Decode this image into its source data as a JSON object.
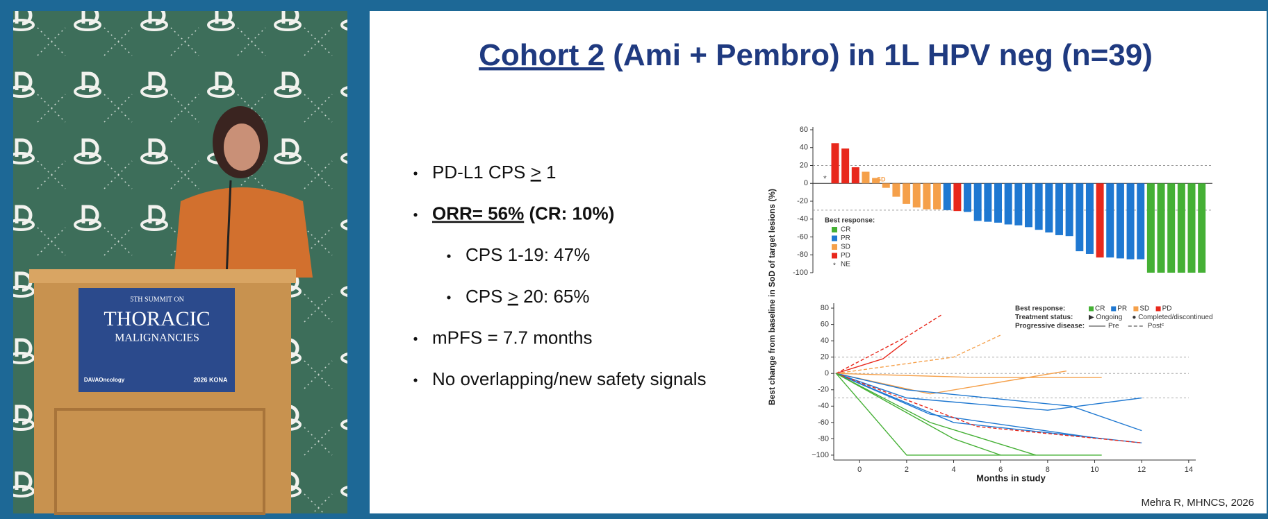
{
  "video": {
    "sign": {
      "line1": "5TH SUMMIT ON",
      "line2": "THORACIC",
      "line3": "MALIGNANCIES",
      "brand": "DAVAOncology",
      "event": "2026 KONA"
    }
  },
  "slide": {
    "title": {
      "underlined": "Cohort 2",
      "rest": " (Ami + Pembro) in 1L HPV neg (n=39)"
    },
    "bullets": [
      {
        "level": 1,
        "bold": false,
        "segments": [
          {
            "text": "PD-L1 CPS "
          },
          {
            "text": ">",
            "underline": true
          },
          {
            "text": " 1"
          }
        ]
      },
      {
        "level": 1,
        "bold": true,
        "segments": [
          {
            "text": "ORR= 56%",
            "underline": true
          },
          {
            "text": " (CR: 10%)"
          }
        ]
      },
      {
        "level": 2,
        "bold": false,
        "segments": [
          {
            "text": "CPS 1-19: 47%"
          }
        ]
      },
      {
        "level": 2,
        "bold": false,
        "segments": [
          {
            "text": "CPS "
          },
          {
            "text": ">",
            "underline": true
          },
          {
            "text": " 20: 65%"
          }
        ]
      },
      {
        "level": 1,
        "bold": false,
        "segments": [
          {
            "text": "mPFS = 7.7 months"
          }
        ]
      },
      {
        "level": 1,
        "bold": false,
        "segments": [
          {
            "text": "No overlapping/new safety signals"
          }
        ]
      }
    ],
    "footnote": "Mehra R, MHNCS, 2026"
  },
  "chart_data": [
    {
      "type": "bar",
      "y_label": "Best change from baseline in SoD of target lesions (%)",
      "ylim": [
        -100,
        60
      ],
      "yticks": [
        60,
        40,
        20,
        0,
        -20,
        -40,
        -60,
        -80,
        -100
      ],
      "ref_lines": [
        20,
        -30
      ],
      "sd_annotation": "SD",
      "ne_marker": "*",
      "values": [
        null,
        45,
        39,
        18,
        13,
        6,
        -5,
        -15,
        -23,
        -27,
        -29,
        -29,
        -30,
        -31,
        -32,
        -42,
        -43,
        -44,
        -46,
        -47,
        -49,
        -52,
        -55,
        -58,
        -59,
        -76,
        -79,
        -83,
        -83,
        -84,
        -85,
        -85,
        -100,
        -100,
        -100,
        -100,
        -100,
        -100
      ],
      "colors": [
        "#888",
        "#e8281c",
        "#e8281c",
        "#e8281c",
        "#f5a04a",
        "#f5a04a",
        "#f5a04a",
        "#f5a04a",
        "#f5a04a",
        "#f5a04a",
        "#f5a04a",
        "#f5a04a",
        "#1f78d1",
        "#e8281c",
        "#1f78d1",
        "#1f78d1",
        "#1f78d1",
        "#1f78d1",
        "#1f78d1",
        "#1f78d1",
        "#1f78d1",
        "#1f78d1",
        "#1f78d1",
        "#1f78d1",
        "#1f78d1",
        "#1f78d1",
        "#1f78d1",
        "#e8281c",
        "#1f78d1",
        "#1f78d1",
        "#1f78d1",
        "#1f78d1",
        "#45b035",
        "#45b035",
        "#45b035",
        "#45b035",
        "#45b035",
        "#45b035"
      ],
      "legend_title": "Best response:",
      "legend": [
        {
          "name": "CR",
          "color": "#45b035"
        },
        {
          "name": "PR",
          "color": "#1f78d1"
        },
        {
          "name": "SD",
          "color": "#f5a04a"
        },
        {
          "name": "PD",
          "color": "#e8281c"
        },
        {
          "name": "NE",
          "marker": "*"
        }
      ]
    },
    {
      "type": "line",
      "x_label": "Months in study",
      "xlim": [
        -1.1,
        14.3
      ],
      "xticks": [
        0,
        2,
        4,
        6,
        8,
        10,
        12,
        14
      ],
      "ylim": [
        -106,
        86
      ],
      "yticks": [
        80,
        60,
        40,
        20,
        0,
        -20,
        -40,
        -60,
        -80,
        {
          "value": -100,
          "label": "−100"
        }
      ],
      "ref_lines": [
        20,
        0,
        -30
      ],
      "legend_rows": [
        {
          "title": "Best response:",
          "items": [
            "CR",
            "PR",
            "SD",
            "PD"
          ]
        },
        {
          "title": "Treatment status:",
          "items": [
            "▶ Ongoing",
            "● Completed/discontinued"
          ]
        },
        {
          "title": "Progressive disease:",
          "items": [
            "Pre",
            "Postᶜ"
          ]
        }
      ],
      "legend_colors": [
        "#45b035",
        "#1f78d1",
        "#f5a04a",
        "#e8281c"
      ],
      "series": [
        {
          "color": "#e8281c",
          "dashed": true,
          "x": [
            -1,
            2,
            3.5
          ],
          "values": [
            0,
            45,
            72
          ]
        },
        {
          "color": "#e8281c",
          "dashed": false,
          "x": [
            -1,
            1,
            2
          ],
          "values": [
            0,
            18,
            40
          ]
        },
        {
          "color": "#f5a04a",
          "dashed": true,
          "x": [
            -1,
            4,
            6
          ],
          "values": [
            0,
            20,
            47
          ]
        },
        {
          "color": "#f5a04a",
          "dashed": false,
          "x": [
            -1,
            5,
            10.3
          ],
          "values": [
            0,
            -5,
            -5
          ]
        },
        {
          "color": "#f5a04a",
          "dashed": false,
          "x": [
            -1,
            3,
            8.8
          ],
          "values": [
            0,
            -25,
            3
          ]
        },
        {
          "color": "#1f78d1",
          "dashed": false,
          "x": [
            -1,
            2,
            8,
            12
          ],
          "values": [
            0,
            -30,
            -45,
            -30
          ]
        },
        {
          "color": "#1f78d1",
          "dashed": false,
          "x": [
            -1,
            3,
            10.3
          ],
          "values": [
            0,
            -50,
            -80
          ]
        },
        {
          "color": "#1f78d1",
          "dashed": false,
          "x": [
            -1,
            4,
            12
          ],
          "values": [
            0,
            -60,
            -85
          ]
        },
        {
          "color": "#1f78d1",
          "dashed": false,
          "x": [
            -1,
            2,
            9,
            12
          ],
          "values": [
            0,
            -20,
            -40,
            -70
          ]
        },
        {
          "color": "#e8281c",
          "dashed": true,
          "x": [
            -1,
            5,
            12
          ],
          "values": [
            0,
            -65,
            -85
          ]
        },
        {
          "color": "#45b035",
          "dashed": false,
          "x": [
            -1,
            2,
            10.3
          ],
          "values": [
            0,
            -100,
            -100
          ]
        },
        {
          "color": "#45b035",
          "dashed": false,
          "x": [
            -1,
            4,
            6
          ],
          "values": [
            0,
            -80,
            -100
          ]
        },
        {
          "color": "#45b035",
          "dashed": false,
          "x": [
            -1,
            3,
            7.5
          ],
          "values": [
            0,
            -60,
            -100
          ]
        }
      ]
    }
  ]
}
